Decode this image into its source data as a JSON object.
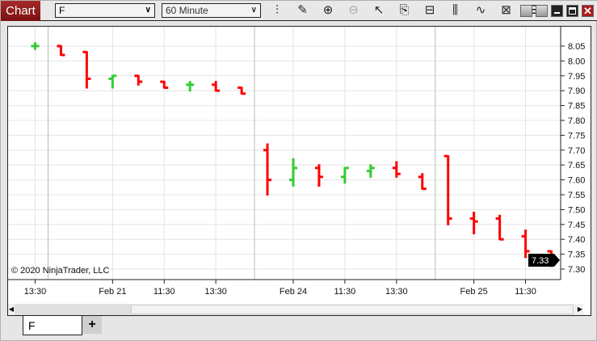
{
  "window": {
    "title": "Chart"
  },
  "toolbar": {
    "instrument": "F",
    "interval": "60 Minute",
    "tools": [
      "data-series-icon",
      "pencil-draw-icon",
      "zoom-in-icon",
      "zoom-out-icon",
      "pointer-icon",
      "chart-properties-icon",
      "chart-trader-icon",
      "indicators-icon",
      "strategies-icon",
      "templates-icon",
      "list-icon"
    ]
  },
  "copyright": "© 2020 NinjaTrader, LLC",
  "colors": {
    "up": "#33cc33",
    "down": "#ff0000",
    "grid": "#e4e4e4",
    "session": "#bbbbbb"
  },
  "price_axis": {
    "labels": [
      "8.05",
      "8.00",
      "7.95",
      "7.90",
      "7.85",
      "7.80",
      "7.75",
      "7.70",
      "7.65",
      "7.60",
      "7.55",
      "7.50",
      "7.45",
      "7.40",
      "7.35",
      "7.30"
    ],
    "last_price": "7.33"
  },
  "time_axis": {
    "labels": [
      "13:30",
      "Feb 21",
      "11:30",
      "13:30",
      "Feb 24",
      "11:30",
      "13:30",
      "Feb 25",
      "11:30"
    ],
    "label_bar_index": [
      0,
      3,
      5,
      7,
      10,
      12,
      14,
      17,
      19
    ],
    "session_break_after_bar": [
      0,
      8,
      15
    ]
  },
  "chart_data": {
    "type": "ohlc",
    "ylim": [
      7.28,
      8.08
    ],
    "bars": [
      {
        "o": 8.05,
        "h": 8.06,
        "l": 8.04,
        "c": 8.05
      },
      {
        "o": 8.05,
        "h": 8.05,
        "l": 8.02,
        "c": 8.02
      },
      {
        "o": 8.03,
        "h": 8.03,
        "l": 7.91,
        "c": 7.94
      },
      {
        "o": 7.94,
        "h": 7.95,
        "l": 7.91,
        "c": 7.95
      },
      {
        "o": 7.95,
        "h": 7.95,
        "l": 7.92,
        "c": 7.93
      },
      {
        "o": 7.93,
        "h": 7.93,
        "l": 7.91,
        "c": 7.91
      },
      {
        "o": 7.92,
        "h": 7.93,
        "l": 7.9,
        "c": 7.92
      },
      {
        "o": 7.92,
        "h": 7.93,
        "l": 7.9,
        "c": 7.9
      },
      {
        "o": 7.91,
        "h": 7.91,
        "l": 7.89,
        "c": 7.89
      },
      {
        "o": 7.7,
        "h": 7.72,
        "l": 7.55,
        "c": 7.6
      },
      {
        "o": 7.6,
        "h": 7.67,
        "l": 7.58,
        "c": 7.64
      },
      {
        "o": 7.64,
        "h": 7.65,
        "l": 7.58,
        "c": 7.61
      },
      {
        "o": 7.61,
        "h": 7.64,
        "l": 7.59,
        "c": 7.64
      },
      {
        "o": 7.63,
        "h": 7.65,
        "l": 7.61,
        "c": 7.64
      },
      {
        "o": 7.64,
        "h": 7.66,
        "l": 7.61,
        "c": 7.62
      },
      {
        "o": 7.61,
        "h": 7.62,
        "l": 7.57,
        "c": 7.57
      },
      {
        "o": 7.68,
        "h": 7.68,
        "l": 7.45,
        "c": 7.47
      },
      {
        "o": 7.47,
        "h": 7.49,
        "l": 7.42,
        "c": 7.46
      },
      {
        "o": 7.47,
        "h": 7.48,
        "l": 7.4,
        "c": 7.4
      },
      {
        "o": 7.41,
        "h": 7.43,
        "l": 7.34,
        "c": 7.36
      },
      {
        "o": 7.36,
        "h": 7.36,
        "l": 7.31,
        "c": 7.33
      }
    ]
  },
  "tabs": [
    {
      "label": "F"
    }
  ],
  "add_tab": "+"
}
